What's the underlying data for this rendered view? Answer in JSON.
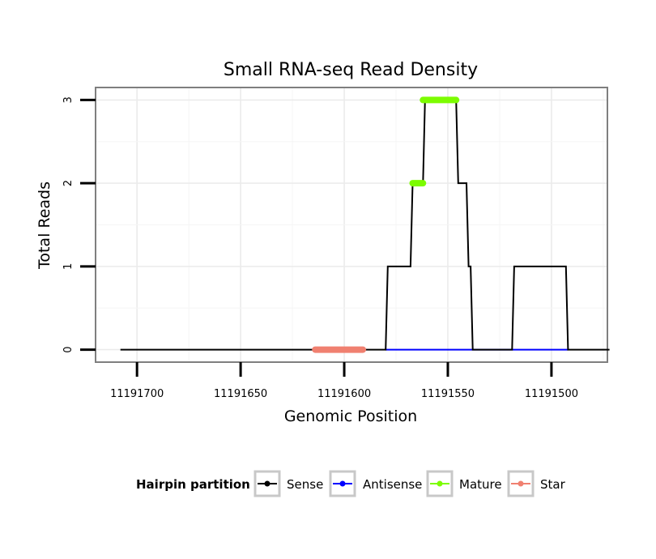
{
  "chart_data": {
    "type": "line",
    "title": "Small RNA-seq Read Density",
    "xlabel": "Genomic Position",
    "ylabel": "Total Reads",
    "xlim": [
      11191720,
      11191473
    ],
    "ylim": [
      -0.15,
      3.15
    ],
    "x_reversed": true,
    "x_ticks": [
      11191700,
      11191650,
      11191600,
      11191550,
      11191500
    ],
    "x_tick_labels": [
      "11191700",
      "11191650",
      "11191600",
      "11191550",
      "11191500"
    ],
    "y_ticks": [
      0,
      1,
      2,
      3
    ],
    "y_tick_labels": [
      "0",
      "1",
      "2",
      "3"
    ],
    "grid": true,
    "legend_position": "bottom",
    "legend": {
      "title": "Hairpin partition",
      "entries": [
        {
          "name": "Sense",
          "color": "#000000"
        },
        {
          "name": "Antisense",
          "color": "#0000ff"
        },
        {
          "name": "Mature",
          "color": "#7cfc00"
        },
        {
          "name": "Star",
          "color": "#f08070"
        }
      ]
    },
    "series": [
      {
        "name": "Sense",
        "color": "#000000",
        "points": [
          [
            11191708,
            0
          ],
          [
            11191580,
            0
          ],
          [
            11191579,
            1
          ],
          [
            11191568,
            1
          ],
          [
            11191567,
            2
          ],
          [
            11191562,
            2
          ],
          [
            11191561,
            3
          ],
          [
            11191546,
            3
          ],
          [
            11191545,
            2
          ],
          [
            11191541,
            2
          ],
          [
            11191540,
            1
          ],
          [
            11191539,
            1
          ],
          [
            11191538,
            0
          ],
          [
            11191519,
            0
          ],
          [
            11191518,
            1
          ],
          [
            11191493,
            1
          ],
          [
            11191492,
            0
          ],
          [
            11191472,
            0
          ]
        ]
      },
      {
        "name": "Antisense",
        "color": "#0000ff",
        "points": [
          [
            11191580,
            0
          ],
          [
            11191492,
            0
          ]
        ]
      },
      {
        "name": "Mature",
        "color": "#7cfc00",
        "segments": [
          {
            "y": 2,
            "x_start": 11191567,
            "x_end": 11191562
          },
          {
            "y": 3,
            "x_start": 11191562,
            "x_end": 11191546
          }
        ]
      },
      {
        "name": "Star",
        "color": "#f08070",
        "segments": [
          {
            "y": 0,
            "x_start": 11191614,
            "x_end": 11191591
          }
        ]
      }
    ]
  }
}
